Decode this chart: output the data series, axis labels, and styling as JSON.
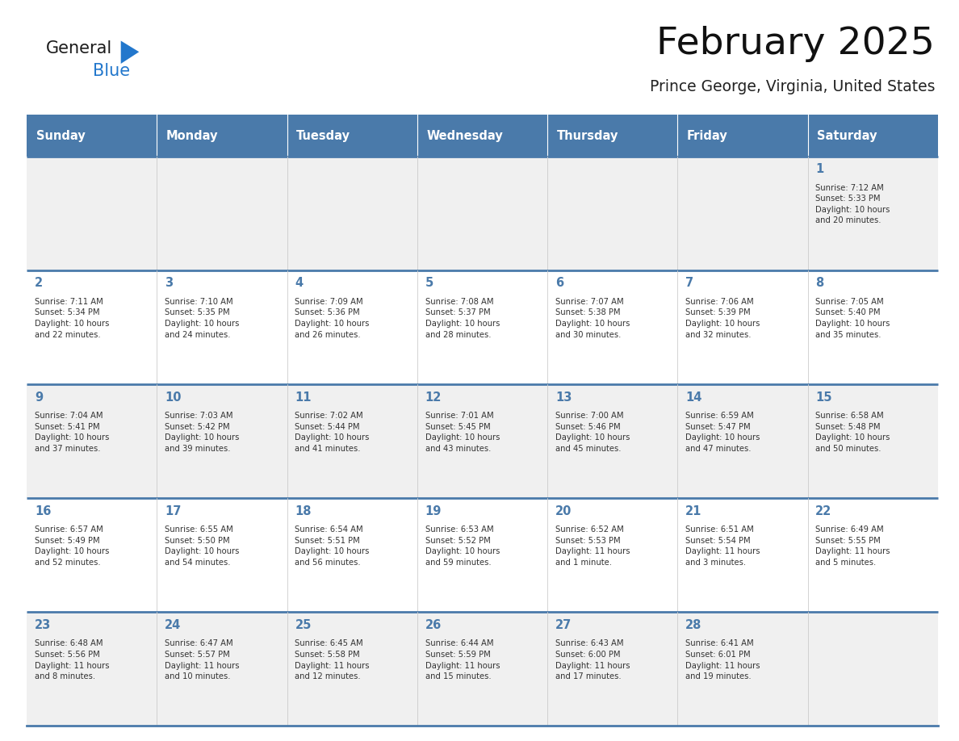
{
  "title": "February 2025",
  "subtitle": "Prince George, Virginia, United States",
  "header_bg": "#4a7aaa",
  "header_text_color": "#ffffff",
  "cell_bg_light": "#f0f0f0",
  "cell_bg_white": "#ffffff",
  "day_number_color": "#4a7aaa",
  "info_text_color": "#333333",
  "border_color": "#4a7aaa",
  "days_of_week": [
    "Sunday",
    "Monday",
    "Tuesday",
    "Wednesday",
    "Thursday",
    "Friday",
    "Saturday"
  ],
  "calendar_data": [
    [
      {
        "day": "",
        "sunrise": "",
        "sunset": "",
        "daylight": ""
      },
      {
        "day": "",
        "sunrise": "",
        "sunset": "",
        "daylight": ""
      },
      {
        "day": "",
        "sunrise": "",
        "sunset": "",
        "daylight": ""
      },
      {
        "day": "",
        "sunrise": "",
        "sunset": "",
        "daylight": ""
      },
      {
        "day": "",
        "sunrise": "",
        "sunset": "",
        "daylight": ""
      },
      {
        "day": "",
        "sunrise": "",
        "sunset": "",
        "daylight": ""
      },
      {
        "day": "1",
        "sunrise": "7:12 AM",
        "sunset": "5:33 PM",
        "daylight": "10 hours\nand 20 minutes."
      }
    ],
    [
      {
        "day": "2",
        "sunrise": "7:11 AM",
        "sunset": "5:34 PM",
        "daylight": "10 hours\nand 22 minutes."
      },
      {
        "day": "3",
        "sunrise": "7:10 AM",
        "sunset": "5:35 PM",
        "daylight": "10 hours\nand 24 minutes."
      },
      {
        "day": "4",
        "sunrise": "7:09 AM",
        "sunset": "5:36 PM",
        "daylight": "10 hours\nand 26 minutes."
      },
      {
        "day": "5",
        "sunrise": "7:08 AM",
        "sunset": "5:37 PM",
        "daylight": "10 hours\nand 28 minutes."
      },
      {
        "day": "6",
        "sunrise": "7:07 AM",
        "sunset": "5:38 PM",
        "daylight": "10 hours\nand 30 minutes."
      },
      {
        "day": "7",
        "sunrise": "7:06 AM",
        "sunset": "5:39 PM",
        "daylight": "10 hours\nand 32 minutes."
      },
      {
        "day": "8",
        "sunrise": "7:05 AM",
        "sunset": "5:40 PM",
        "daylight": "10 hours\nand 35 minutes."
      }
    ],
    [
      {
        "day": "9",
        "sunrise": "7:04 AM",
        "sunset": "5:41 PM",
        "daylight": "10 hours\nand 37 minutes."
      },
      {
        "day": "10",
        "sunrise": "7:03 AM",
        "sunset": "5:42 PM",
        "daylight": "10 hours\nand 39 minutes."
      },
      {
        "day": "11",
        "sunrise": "7:02 AM",
        "sunset": "5:44 PM",
        "daylight": "10 hours\nand 41 minutes."
      },
      {
        "day": "12",
        "sunrise": "7:01 AM",
        "sunset": "5:45 PM",
        "daylight": "10 hours\nand 43 minutes."
      },
      {
        "day": "13",
        "sunrise": "7:00 AM",
        "sunset": "5:46 PM",
        "daylight": "10 hours\nand 45 minutes."
      },
      {
        "day": "14",
        "sunrise": "6:59 AM",
        "sunset": "5:47 PM",
        "daylight": "10 hours\nand 47 minutes."
      },
      {
        "day": "15",
        "sunrise": "6:58 AM",
        "sunset": "5:48 PM",
        "daylight": "10 hours\nand 50 minutes."
      }
    ],
    [
      {
        "day": "16",
        "sunrise": "6:57 AM",
        "sunset": "5:49 PM",
        "daylight": "10 hours\nand 52 minutes."
      },
      {
        "day": "17",
        "sunrise": "6:55 AM",
        "sunset": "5:50 PM",
        "daylight": "10 hours\nand 54 minutes."
      },
      {
        "day": "18",
        "sunrise": "6:54 AM",
        "sunset": "5:51 PM",
        "daylight": "10 hours\nand 56 minutes."
      },
      {
        "day": "19",
        "sunrise": "6:53 AM",
        "sunset": "5:52 PM",
        "daylight": "10 hours\nand 59 minutes."
      },
      {
        "day": "20",
        "sunrise": "6:52 AM",
        "sunset": "5:53 PM",
        "daylight": "11 hours\nand 1 minute."
      },
      {
        "day": "21",
        "sunrise": "6:51 AM",
        "sunset": "5:54 PM",
        "daylight": "11 hours\nand 3 minutes."
      },
      {
        "day": "22",
        "sunrise": "6:49 AM",
        "sunset": "5:55 PM",
        "daylight": "11 hours\nand 5 minutes."
      }
    ],
    [
      {
        "day": "23",
        "sunrise": "6:48 AM",
        "sunset": "5:56 PM",
        "daylight": "11 hours\nand 8 minutes."
      },
      {
        "day": "24",
        "sunrise": "6:47 AM",
        "sunset": "5:57 PM",
        "daylight": "11 hours\nand 10 minutes."
      },
      {
        "day": "25",
        "sunrise": "6:45 AM",
        "sunset": "5:58 PM",
        "daylight": "11 hours\nand 12 minutes."
      },
      {
        "day": "26",
        "sunrise": "6:44 AM",
        "sunset": "5:59 PM",
        "daylight": "11 hours\nand 15 minutes."
      },
      {
        "day": "27",
        "sunrise": "6:43 AM",
        "sunset": "6:00 PM",
        "daylight": "11 hours\nand 17 minutes."
      },
      {
        "day": "28",
        "sunrise": "6:41 AM",
        "sunset": "6:01 PM",
        "daylight": "11 hours\nand 19 minutes."
      },
      {
        "day": "",
        "sunrise": "",
        "sunset": "",
        "daylight": ""
      }
    ]
  ],
  "logo_color_general": "#1a1a1a",
  "logo_color_blue": "#2277cc",
  "logo_triangle_color": "#2277cc"
}
